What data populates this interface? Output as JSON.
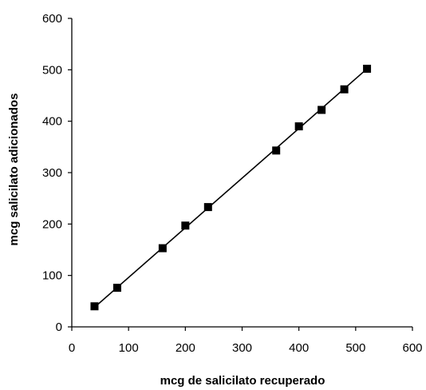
{
  "chart_data": {
    "type": "scatter",
    "title": "",
    "xlabel": "mcg de salicilato recuperado",
    "ylabel": "mcg salicilato adicionados",
    "xlim": [
      0,
      600
    ],
    "ylim": [
      0,
      600
    ],
    "x_ticks": [
      0,
      100,
      200,
      300,
      400,
      500,
      600
    ],
    "y_ticks": [
      0,
      100,
      200,
      300,
      400,
      500,
      600
    ],
    "x_tick_labels": [
      "0",
      "100",
      "200",
      "300",
      "400",
      "500",
      "600"
    ],
    "y_tick_labels": [
      "0",
      "100",
      "200",
      "300",
      "400",
      "500",
      "600"
    ],
    "grid": false,
    "legend": "none",
    "marker": "square",
    "series": [
      {
        "points": [
          {
            "x": 40,
            "y": 40
          },
          {
            "x": 80,
            "y": 76
          },
          {
            "x": 160,
            "y": 153
          },
          {
            "x": 200,
            "y": 197
          },
          {
            "x": 240,
            "y": 233
          },
          {
            "x": 360,
            "y": 343
          },
          {
            "x": 400,
            "y": 390
          },
          {
            "x": 440,
            "y": 422
          },
          {
            "x": 480,
            "y": 462
          },
          {
            "x": 520,
            "y": 502
          }
        ],
        "trendline": {
          "from": [
            40,
            38
          ],
          "to": [
            520,
            502
          ]
        },
        "color": "#000000"
      }
    ]
  }
}
